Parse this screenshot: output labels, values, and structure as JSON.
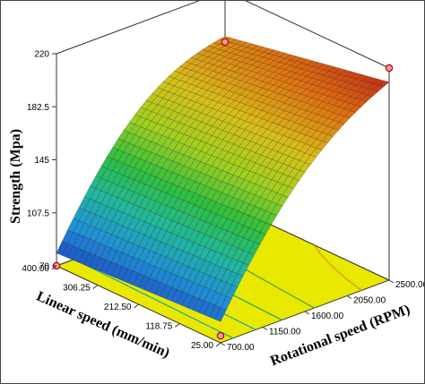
{
  "chart_data": {
    "type": "surface3d",
    "title": "",
    "zlabel": "Strength (Mpa)",
    "xlabel": "Linear speed (mm/min)",
    "ylabel": "Rotational speed (RPM)",
    "z_ticks": [
      "70",
      "107.5",
      "145",
      "182.5",
      "220"
    ],
    "z_range": [
      70,
      220
    ],
    "x_ticks": [
      "400.00",
      "306.25",
      "212.50",
      "118.75",
      "25.00"
    ],
    "x_range": [
      25,
      400
    ],
    "y_ticks": [
      "700.00",
      "1150.00",
      "1600.00",
      "2050.00",
      "2500.00"
    ],
    "y_range": [
      700,
      2500
    ],
    "surface_corners": [
      {
        "linear_speed": 400,
        "rotational_speed": 700,
        "strength": 79
      },
      {
        "linear_speed": 400,
        "rotational_speed": 2500,
        "strength": 188
      },
      {
        "linear_speed": 25,
        "rotational_speed": 700,
        "strength": 85
      },
      {
        "linear_speed": 25,
        "rotational_speed": 2500,
        "strength": 210
      }
    ],
    "design_points": [
      {
        "linear_speed": 400,
        "rotational_speed": 700,
        "strength": 70
      },
      {
        "linear_speed": 400,
        "rotational_speed": 2500,
        "strength": 184
      },
      {
        "linear_speed": 25,
        "rotational_speed": 700,
        "strength": 75
      },
      {
        "linear_speed": 25,
        "rotational_speed": 2500,
        "strength": 220
      }
    ],
    "contour_floor_color": "#e8e800",
    "colormap": [
      "#1f3fbf",
      "#1f8fd8",
      "#20b8a0",
      "#2fbf3f",
      "#9fd020",
      "#d8c018",
      "#e07010",
      "#c01818"
    ],
    "grid": false,
    "legend": "none"
  }
}
